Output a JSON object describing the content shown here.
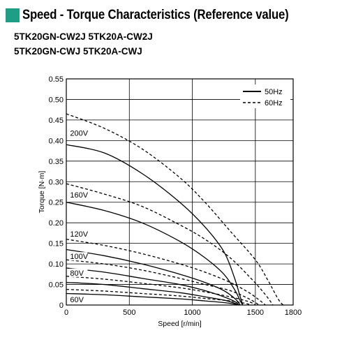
{
  "header": {
    "title": "Speed - Torque Characteristics (Reference value)",
    "accent_color": "#1f9e86",
    "model_line_1": "5TK20GN-CW2J  5TK20A-CW2J",
    "model_line_2": "5TK20GN-CWJ  5TK20A-CWJ"
  },
  "chart_data": {
    "type": "line",
    "xlabel": "Speed [r/min]",
    "ylabel": "Torque [N·m]",
    "xlim": [
      0,
      1800
    ],
    "ylim": [
      0,
      0.55
    ],
    "x_ticks": [
      0,
      500,
      1000,
      1500,
      1800
    ],
    "y_ticks": [
      0,
      0.05,
      0.1,
      0.15,
      0.2,
      0.25,
      0.3,
      0.35,
      0.4,
      0.45,
      0.5,
      0.55
    ],
    "x_tick_labels": [
      "0",
      "500",
      "1000",
      "1500",
      "1800"
    ],
    "y_tick_labels": [
      "0",
      "0.05",
      "0.10",
      "0.15",
      "0.20",
      "0.25",
      "0.30",
      "0.35",
      "0.40",
      "0.45",
      "0.50",
      "0.55"
    ],
    "grid": true,
    "legend": {
      "placement": "top-right",
      "entries": [
        {
          "label": "50Hz",
          "style": "solid"
        },
        {
          "label": "60Hz",
          "style": "dashed"
        }
      ]
    },
    "voltage_labels": [
      {
        "text": "200V",
        "x": 30,
        "y": 0.41
      },
      {
        "text": "160V",
        "x": 30,
        "y": 0.26
      },
      {
        "text": "120V",
        "x": 30,
        "y": 0.165
      },
      {
        "text": "100V",
        "x": 30,
        "y": 0.11
      },
      {
        "text": "80V",
        "x": 30,
        "y": 0.07
      },
      {
        "text": "60V",
        "x": 30,
        "y": 0.005
      }
    ],
    "series": [
      {
        "name": "200V 50Hz",
        "style": "solid",
        "points": [
          [
            0,
            0.39
          ],
          [
            300,
            0.37
          ],
          [
            600,
            0.32
          ],
          [
            900,
            0.25
          ],
          [
            1100,
            0.19
          ],
          [
            1250,
            0.13
          ],
          [
            1330,
            0.07
          ],
          [
            1380,
            0.02
          ],
          [
            1400,
            0
          ]
        ]
      },
      {
        "name": "200V 60Hz",
        "style": "dashed",
        "points": [
          [
            0,
            0.465
          ],
          [
            300,
            0.43
          ],
          [
            600,
            0.38
          ],
          [
            900,
            0.31
          ],
          [
            1100,
            0.25
          ],
          [
            1300,
            0.18
          ],
          [
            1500,
            0.11
          ],
          [
            1600,
            0.06
          ],
          [
            1680,
            0.015
          ],
          [
            1720,
            0
          ]
        ]
      },
      {
        "name": "160V 50Hz",
        "style": "solid",
        "points": [
          [
            0,
            0.25
          ],
          [
            300,
            0.23
          ],
          [
            600,
            0.2
          ],
          [
            900,
            0.155
          ],
          [
            1100,
            0.115
          ],
          [
            1250,
            0.075
          ],
          [
            1340,
            0.035
          ],
          [
            1380,
            0.01
          ],
          [
            1400,
            0
          ]
        ]
      },
      {
        "name": "160V 60Hz",
        "style": "dashed",
        "points": [
          [
            0,
            0.295
          ],
          [
            300,
            0.27
          ],
          [
            600,
            0.24
          ],
          [
            900,
            0.195
          ],
          [
            1100,
            0.16
          ],
          [
            1300,
            0.115
          ],
          [
            1480,
            0.06
          ],
          [
            1580,
            0.025
          ],
          [
            1640,
            0
          ]
        ]
      },
      {
        "name": "120V 50Hz",
        "style": "solid",
        "points": [
          [
            0,
            0.135
          ],
          [
            300,
            0.12
          ],
          [
            600,
            0.1
          ],
          [
            900,
            0.075
          ],
          [
            1100,
            0.055
          ],
          [
            1250,
            0.035
          ],
          [
            1340,
            0.015
          ],
          [
            1380,
            0
          ]
        ]
      },
      {
        "name": "120V 60Hz",
        "style": "dashed",
        "points": [
          [
            0,
            0.16
          ],
          [
            300,
            0.145
          ],
          [
            600,
            0.125
          ],
          [
            900,
            0.1
          ],
          [
            1100,
            0.08
          ],
          [
            1300,
            0.055
          ],
          [
            1450,
            0.03
          ],
          [
            1540,
            0.01
          ],
          [
            1580,
            0
          ]
        ]
      },
      {
        "name": "100V 50Hz",
        "style": "solid",
        "points": [
          [
            0,
            0.09
          ],
          [
            300,
            0.08
          ],
          [
            600,
            0.065
          ],
          [
            900,
            0.05
          ],
          [
            1100,
            0.035
          ],
          [
            1250,
            0.02
          ],
          [
            1340,
            0.008
          ],
          [
            1370,
            0
          ]
        ]
      },
      {
        "name": "100V 60Hz",
        "style": "dashed",
        "points": [
          [
            0,
            0.11
          ],
          [
            300,
            0.1
          ],
          [
            600,
            0.085
          ],
          [
            900,
            0.065
          ],
          [
            1100,
            0.05
          ],
          [
            1300,
            0.035
          ],
          [
            1450,
            0.015
          ],
          [
            1530,
            0
          ]
        ]
      },
      {
        "name": "80V 50Hz",
        "style": "solid",
        "points": [
          [
            0,
            0.055
          ],
          [
            300,
            0.05
          ],
          [
            600,
            0.04
          ],
          [
            900,
            0.03
          ],
          [
            1100,
            0.02
          ],
          [
            1250,
            0.012
          ],
          [
            1340,
            0.004
          ],
          [
            1360,
            0
          ]
        ]
      },
      {
        "name": "80V 60Hz",
        "style": "dashed",
        "points": [
          [
            0,
            0.07
          ],
          [
            300,
            0.063
          ],
          [
            600,
            0.053
          ],
          [
            900,
            0.042
          ],
          [
            1100,
            0.032
          ],
          [
            1300,
            0.02
          ],
          [
            1450,
            0.008
          ],
          [
            1500,
            0
          ]
        ]
      },
      {
        "name": "60V 50Hz",
        "style": "solid",
        "points": [
          [
            0,
            0.028
          ],
          [
            300,
            0.025
          ],
          [
            600,
            0.02
          ],
          [
            900,
            0.015
          ],
          [
            1100,
            0.01
          ],
          [
            1250,
            0.006
          ],
          [
            1340,
            0.002
          ],
          [
            1350,
            0
          ]
        ]
      },
      {
        "name": "60V 60Hz",
        "style": "dashed",
        "points": [
          [
            0,
            0.038
          ],
          [
            300,
            0.034
          ],
          [
            600,
            0.028
          ],
          [
            900,
            0.022
          ],
          [
            1100,
            0.016
          ],
          [
            1300,
            0.01
          ],
          [
            1420,
            0.004
          ],
          [
            1470,
            0
          ]
        ]
      }
    ]
  }
}
